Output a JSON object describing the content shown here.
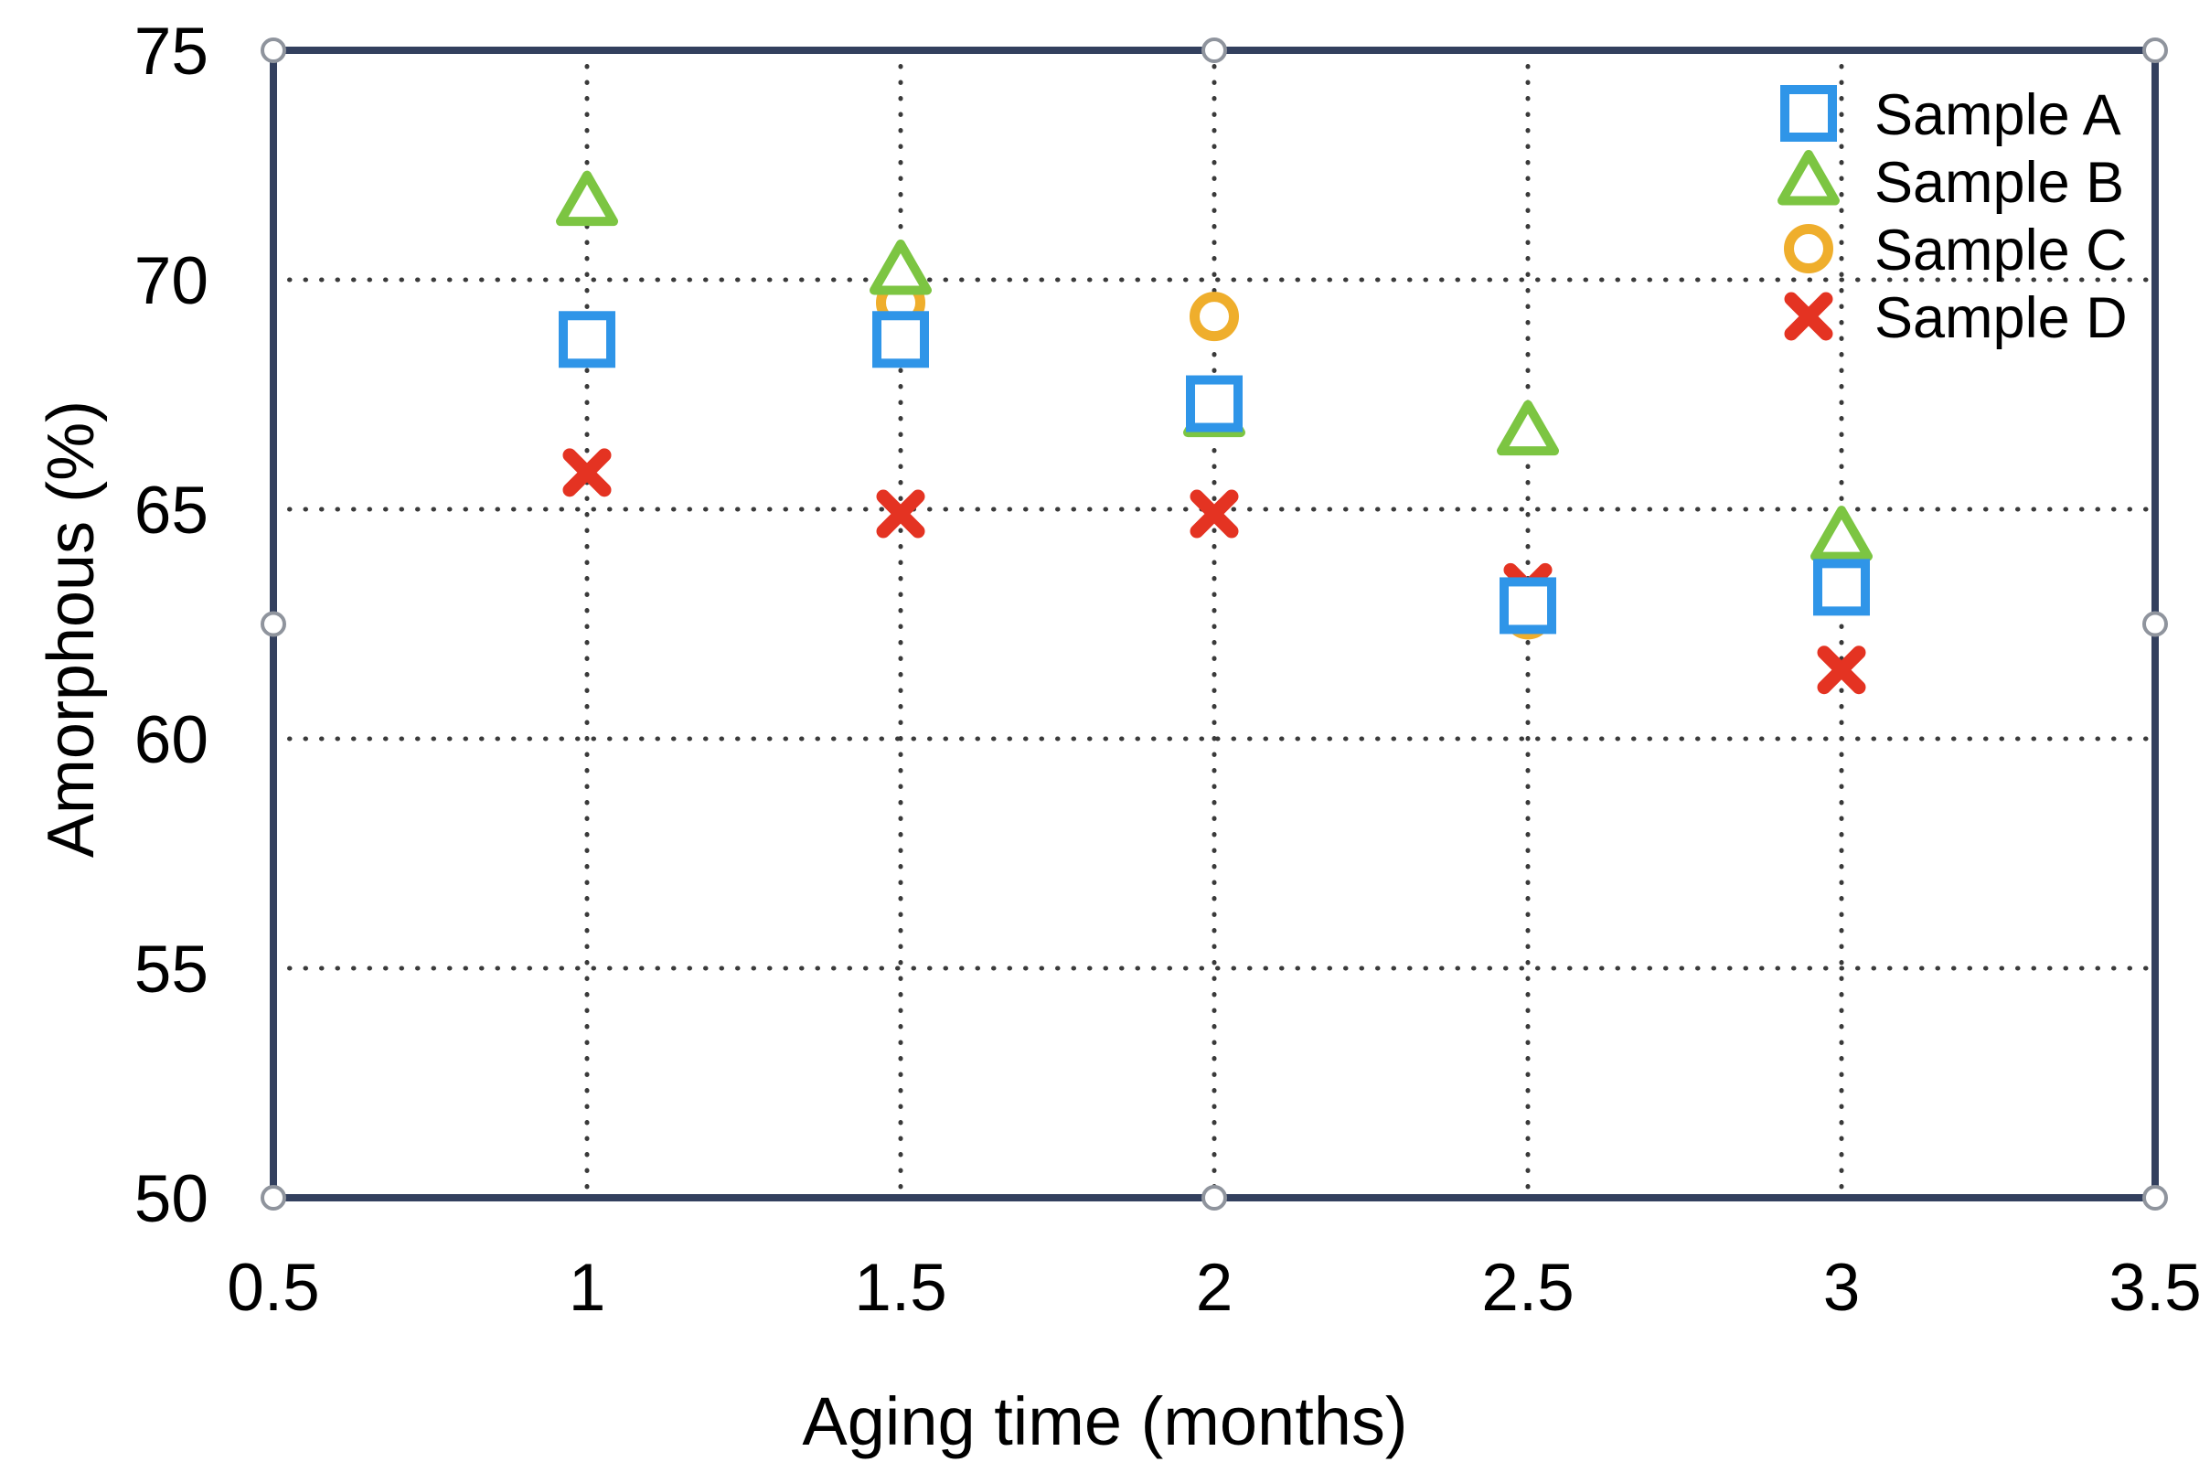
{
  "chart_data": {
    "type": "scatter",
    "title": "",
    "xlabel": "Aging time (months)",
    "ylabel": "Amorphous (%)",
    "xlim": [
      0.5,
      3.5
    ],
    "ylim": [
      50,
      75
    ],
    "x_ticks": {
      "values": [
        0.5,
        1,
        1.5,
        2,
        2.5,
        3,
        3.5
      ],
      "labels": [
        "0.5",
        "1",
        "1.5",
        "2",
        "2.5",
        "3",
        "3.5"
      ]
    },
    "y_ticks": {
      "values": [
        75,
        70,
        65,
        60,
        55,
        50
      ],
      "labels": [
        "75",
        "70",
        "65",
        "60",
        "55",
        "50"
      ]
    },
    "grid": {
      "style": "dotted",
      "x_values": [
        1,
        1.5,
        2,
        2.5,
        3
      ],
      "y_values": [
        70,
        65,
        60,
        55
      ]
    },
    "legend_position": "top-right",
    "series": [
      {
        "name": "Sample A",
        "marker": "square",
        "color": "#2f95e8",
        "points": [
          [
            1,
            68.7
          ],
          [
            1.5,
            68.7
          ],
          [
            2,
            67.3
          ],
          [
            2.5,
            62.9
          ],
          [
            3,
            63.3
          ]
        ]
      },
      {
        "name": "Sample B",
        "marker": "triangle",
        "color": "#7cc542",
        "points": [
          [
            1,
            71.7
          ],
          [
            1.5,
            70.2
          ],
          [
            2,
            67.1
          ],
          [
            2.5,
            66.7
          ],
          [
            3,
            64.4
          ]
        ]
      },
      {
        "name": "Sample C",
        "marker": "circle",
        "color": "#efae2c",
        "points": [
          [
            1.5,
            69.5
          ],
          [
            2,
            69.2
          ],
          [
            2.5,
            62.7
          ],
          [
            3,
            63.6
          ]
        ]
      },
      {
        "name": "Sample D",
        "marker": "x",
        "color": "#e43322",
        "points": [
          [
            1,
            65.8
          ],
          [
            1.5,
            64.9
          ],
          [
            2,
            64.9
          ],
          [
            2.5,
            63.3
          ],
          [
            3,
            61.5
          ]
        ]
      }
    ],
    "draw_order": [
      2,
      1,
      3,
      0
    ],
    "colors": {
      "frame": "#33405e",
      "grid_dots": "#3a3a3a",
      "marker_fill": "#ffffff"
    }
  },
  "ui": {
    "selection_handles_count": 8,
    "handle_fill": "#ffffff",
    "handle_stroke": "#8f949d"
  }
}
